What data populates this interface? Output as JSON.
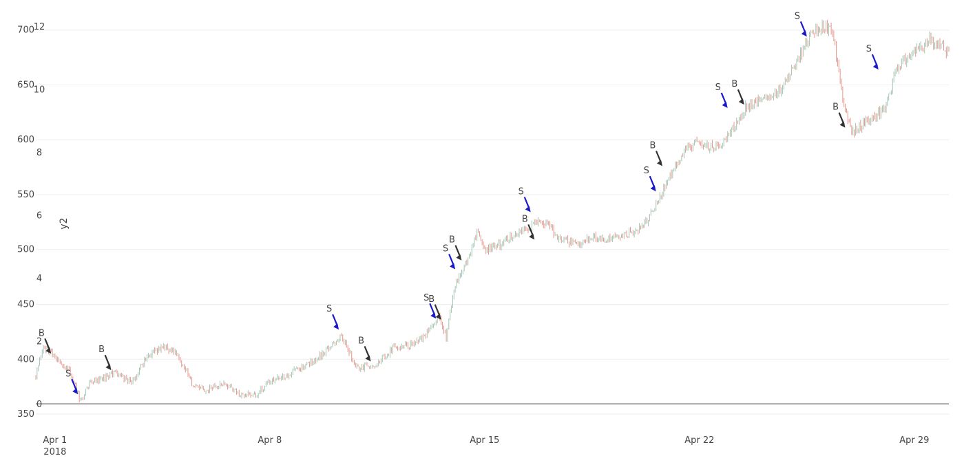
{
  "chart_data": {
    "type": "candlestick",
    "title": "",
    "colors": {
      "up": "#a3c4b2",
      "down": "#e8958a",
      "buy_arrow": "#333333",
      "sell_arrow": "#1a1acc",
      "zero_line": "#444444"
    },
    "x_ticks": [
      {
        "date": "2018-04-01",
        "label": "Apr 1",
        "sublabel": "2018"
      },
      {
        "date": "2018-04-08",
        "label": "Apr 8"
      },
      {
        "date": "2018-04-15",
        "label": "Apr 15"
      },
      {
        "date": "2018-04-22",
        "label": "Apr 22"
      },
      {
        "date": "2018-04-29",
        "label": "Apr 29"
      }
    ],
    "x_range": [
      "2018-03-31T09:00",
      "2018-04-30T03:00"
    ],
    "y_axis": {
      "range": [
        345,
        718
      ],
      "ticks": [
        350,
        400,
        450,
        500,
        550,
        600,
        650,
        700
      ]
    },
    "y2_axis": {
      "title": "y2",
      "range": [
        -0.5,
        12.5
      ],
      "ticks": [
        0,
        2,
        4,
        6,
        8,
        10,
        12
      ],
      "zero_line": true
    },
    "price_path": [
      [
        "2018-03-31T09:00",
        385
      ],
      [
        "2018-03-31T15:00",
        412
      ],
      [
        "2018-04-01T00:00",
        402
      ],
      [
        "2018-04-01T12:00",
        388
      ],
      [
        "2018-04-01T20:00",
        362
      ],
      [
        "2018-04-02T03:00",
        378
      ],
      [
        "2018-04-02T12:00",
        382
      ],
      [
        "2018-04-03T00:00",
        388
      ],
      [
        "2018-04-03T12:00",
        378
      ],
      [
        "2018-04-04T00:00",
        402
      ],
      [
        "2018-04-04T12:00",
        412
      ],
      [
        "2018-04-05T00:00",
        405
      ],
      [
        "2018-04-05T12:00",
        375
      ],
      [
        "2018-04-06T00:00",
        372
      ],
      [
        "2018-04-06T12:00",
        378
      ],
      [
        "2018-04-07T00:00",
        368
      ],
      [
        "2018-04-07T12:00",
        367
      ],
      [
        "2018-04-08T00:00",
        380
      ],
      [
        "2018-04-08T12:00",
        385
      ],
      [
        "2018-04-09T00:00",
        392
      ],
      [
        "2018-04-09T12:00",
        400
      ],
      [
        "2018-04-10T00:00",
        412
      ],
      [
        "2018-04-10T08:00",
        422
      ],
      [
        "2018-04-10T20:00",
        392
      ],
      [
        "2018-04-11T12:00",
        395
      ],
      [
        "2018-04-12T00:00",
        410
      ],
      [
        "2018-04-12T12:00",
        412
      ],
      [
        "2018-04-13T00:00",
        420
      ],
      [
        "2018-04-13T12:00",
        438
      ],
      [
        "2018-04-13T18:00",
        420
      ],
      [
        "2018-04-14T00:00",
        462
      ],
      [
        "2018-04-14T10:00",
        490
      ],
      [
        "2018-04-14T18:00",
        515
      ],
      [
        "2018-04-15T00:00",
        498
      ],
      [
        "2018-04-15T12:00",
        505
      ],
      [
        "2018-04-16T00:00",
        515
      ],
      [
        "2018-04-16T12:00",
        522
      ],
      [
        "2018-04-17T00:00",
        525
      ],
      [
        "2018-04-17T12:00",
        508
      ],
      [
        "2018-04-18T00:00",
        505
      ],
      [
        "2018-04-18T12:00",
        512
      ],
      [
        "2018-04-19T00:00",
        508
      ],
      [
        "2018-04-19T12:00",
        512
      ],
      [
        "2018-04-20T00:00",
        518
      ],
      [
        "2018-04-20T12:00",
        535
      ],
      [
        "2018-04-21T00:00",
        565
      ],
      [
        "2018-04-21T12:00",
        590
      ],
      [
        "2018-04-22T00:00",
        598
      ],
      [
        "2018-04-22T12:00",
        592
      ],
      [
        "2018-04-23T00:00",
        605
      ],
      [
        "2018-04-23T12:00",
        630
      ],
      [
        "2018-04-24T00:00",
        636
      ],
      [
        "2018-04-24T12:00",
        640
      ],
      [
        "2018-04-25T00:00",
        662
      ],
      [
        "2018-04-25T12:00",
        690
      ],
      [
        "2018-04-26T00:00",
        705
      ],
      [
        "2018-04-26T08:00",
        698
      ],
      [
        "2018-04-26T18:00",
        625
      ],
      [
        "2018-04-27T00:00",
        608
      ],
      [
        "2018-04-27T12:00",
        618
      ],
      [
        "2018-04-28T00:00",
        628
      ],
      [
        "2018-04-28T12:00",
        668
      ],
      [
        "2018-04-29T00:00",
        678
      ],
      [
        "2018-04-29T12:00",
        690
      ],
      [
        "2018-04-30T03:00",
        680
      ]
    ],
    "markers": [
      {
        "label": "B",
        "date": "2018-03-31T21:00",
        "price": 405,
        "side": "buy"
      },
      {
        "label": "S",
        "date": "2018-04-01T18:00",
        "price": 368,
        "side": "sell"
      },
      {
        "label": "B",
        "date": "2018-04-02T20:00",
        "price": 390,
        "side": "buy"
      },
      {
        "label": "S",
        "date": "2018-04-10T06:00",
        "price": 427,
        "side": "sell"
      },
      {
        "label": "B",
        "date": "2018-04-11T07:00",
        "price": 398,
        "side": "buy"
      },
      {
        "label": "S",
        "date": "2018-04-13T10:00",
        "price": 437,
        "side": "sell"
      },
      {
        "label": "B",
        "date": "2018-04-13T14:00",
        "price": 436,
        "side": "buy"
      },
      {
        "label": "S",
        "date": "2018-04-14T01:00",
        "price": 482,
        "side": "sell"
      },
      {
        "label": "B",
        "date": "2018-04-14T06:00",
        "price": 490,
        "side": "buy"
      },
      {
        "label": "S",
        "date": "2018-04-16T12:00",
        "price": 534,
        "side": "sell"
      },
      {
        "label": "B",
        "date": "2018-04-16T15:00",
        "price": 509,
        "side": "buy"
      },
      {
        "label": "S",
        "date": "2018-04-20T14:00",
        "price": 553,
        "side": "sell"
      },
      {
        "label": "B",
        "date": "2018-04-20T19:00",
        "price": 576,
        "side": "buy"
      },
      {
        "label": "S",
        "date": "2018-04-22T22:00",
        "price": 629,
        "side": "sell"
      },
      {
        "label": "B",
        "date": "2018-04-23T11:00",
        "price": 632,
        "side": "buy"
      },
      {
        "label": "S",
        "date": "2018-04-25T12:00",
        "price": 694,
        "side": "sell"
      },
      {
        "label": "B",
        "date": "2018-04-26T18:00",
        "price": 611,
        "side": "buy"
      },
      {
        "label": "S",
        "date": "2018-04-27T20:00",
        "price": 664,
        "side": "sell"
      }
    ]
  }
}
